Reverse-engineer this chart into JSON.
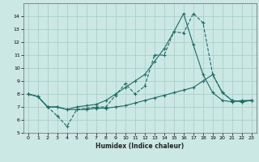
{
  "xlabel": "Humidex (Indice chaleur)",
  "xlim": [
    -0.5,
    23.5
  ],
  "ylim": [
    5,
    15
  ],
  "yticks": [
    5,
    6,
    7,
    8,
    9,
    10,
    11,
    12,
    13,
    14
  ],
  "xticks": [
    0,
    1,
    2,
    3,
    4,
    5,
    6,
    7,
    8,
    9,
    10,
    11,
    12,
    13,
    14,
    15,
    16,
    17,
    18,
    19,
    20,
    21,
    22,
    23
  ],
  "background_color": "#cce8e4",
  "grid_color": "#aacfcb",
  "line_color": "#1a6b64",
  "line1_x": [
    0,
    1,
    2,
    3,
    4,
    5,
    6,
    7,
    8,
    9,
    10,
    11,
    12,
    13,
    14,
    15,
    16,
    17,
    18,
    19,
    20,
    21,
    22,
    23
  ],
  "line1_y": [
    8.0,
    7.8,
    7.0,
    6.3,
    5.5,
    6.8,
    6.9,
    7.0,
    7.0,
    7.9,
    8.8,
    8.0,
    8.6,
    11.0,
    11.0,
    12.8,
    12.7,
    14.2,
    13.5,
    9.5,
    8.1,
    7.5,
    7.4,
    7.5
  ],
  "line2_x": [
    0,
    1,
    2,
    3,
    4,
    5,
    6,
    7,
    8,
    9,
    10,
    11,
    12,
    13,
    14,
    15,
    16,
    17,
    18,
    19,
    20,
    21,
    22,
    23
  ],
  "line2_y": [
    8.0,
    7.8,
    7.0,
    7.0,
    6.8,
    7.0,
    7.1,
    7.2,
    7.5,
    8.0,
    8.5,
    9.0,
    9.5,
    10.5,
    11.5,
    12.8,
    14.2,
    11.8,
    9.5,
    8.1,
    7.5,
    7.4,
    7.5,
    7.5
  ],
  "line3_x": [
    0,
    1,
    2,
    3,
    4,
    5,
    6,
    7,
    8,
    9,
    10,
    11,
    12,
    13,
    14,
    15,
    16,
    17,
    18,
    19,
    20,
    21,
    22,
    23
  ],
  "line3_y": [
    8.0,
    7.8,
    7.0,
    7.0,
    6.8,
    6.8,
    6.8,
    6.9,
    6.9,
    7.0,
    7.1,
    7.3,
    7.5,
    7.7,
    7.9,
    8.1,
    8.3,
    8.5,
    9.0,
    9.5,
    8.1,
    7.5,
    7.4,
    7.5
  ]
}
